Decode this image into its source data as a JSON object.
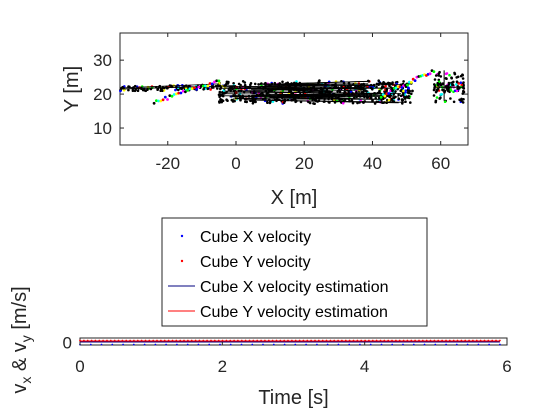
{
  "chart_data": [
    {
      "type": "scatter",
      "xlabel": "X [m]",
      "ylabel": "Y [m]",
      "xlim": [
        -34,
        68
      ],
      "ylim": [
        5,
        38
      ],
      "xticks": [
        -20,
        0,
        20,
        40,
        60
      ],
      "yticks": [
        10,
        20,
        30
      ],
      "grid": false,
      "colors": [
        "#000000",
        "#00ff00",
        "#00ffff",
        "#ffff00",
        "#ff0000",
        "#0000ff",
        "#ff00ff"
      ],
      "clusters": [
        {
          "x": [
            -34,
            -5
          ],
          "y": [
            20.5,
            23.5
          ],
          "note_color": "mixed"
        },
        {
          "x": [
            -5,
            52
          ],
          "y": [
            17,
            26
          ]
        },
        {
          "x": [
            58,
            67
          ],
          "y": [
            17,
            27
          ]
        }
      ],
      "trails": [
        {
          "x": [
            -24,
            -5
          ],
          "y": [
            17.5,
            24
          ]
        },
        {
          "x": [
            42,
            58
          ],
          "y": [
            19,
            27
          ]
        }
      ]
    },
    {
      "type": "scatter",
      "xlabel": "Time [s]",
      "ylabel": "v_x & v_y [m/s]",
      "ylabel_parts": {
        "v1": "v",
        "s1": "x",
        "mid": " & v",
        "s2": "y",
        "unit": " [m/s]"
      },
      "xlim": [
        0,
        6
      ],
      "ylim": [
        -0.05,
        0.05
      ],
      "xticks": [
        0,
        2,
        4,
        6
      ],
      "yticks": [
        0
      ],
      "series": [
        {
          "name": "Cube X velocity",
          "style": "dots",
          "color": "#0000ff",
          "t_range": [
            0,
            5.9
          ],
          "value": 0
        },
        {
          "name": "Cube Y velocity",
          "style": "dots",
          "color": "#ff0000",
          "t_range": [
            0,
            5.9
          ],
          "value": 0
        },
        {
          "name": "Cube X velocity estimation",
          "style": "line",
          "color": "#00007f",
          "t_range": [
            0,
            5.9
          ],
          "value": 0
        },
        {
          "name": "Cube Y velocity estimation",
          "style": "line",
          "color": "#ff0000",
          "t_range": [
            0,
            5.9
          ],
          "value": 0
        }
      ],
      "legend_position": "top-center"
    }
  ]
}
